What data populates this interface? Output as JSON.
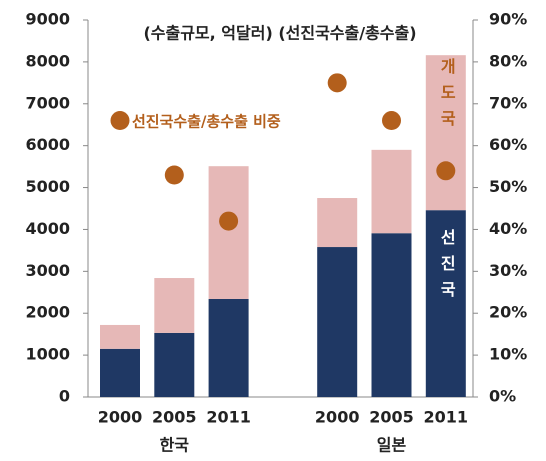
{
  "chart_data": {
    "type": "bar",
    "title": "(수출규모, 억달러) (선진국수출/총수출)",
    "categories": [
      "2000",
      "2005",
      "2011",
      "2000",
      "2005",
      "2011"
    ],
    "groups": [
      "한국",
      "일본"
    ],
    "stacked": true,
    "series": [
      {
        "name": "선진국",
        "color": "#1f3864",
        "values": [
          1150,
          1530,
          2340,
          3580,
          3910,
          4460
        ]
      },
      {
        "name": "개도국",
        "color": "#e6b8b7",
        "values": [
          570,
          1310,
          3170,
          1170,
          1990,
          3700
        ]
      },
      {
        "name": "선진국수출/총수출 비중",
        "type": "scatter",
        "axis": "y2",
        "color": "#b35f1c",
        "values": [
          66,
          53,
          42,
          75,
          66,
          54
        ]
      }
    ],
    "ylim": [
      0,
      9000
    ],
    "yticks": [
      0,
      1000,
      2000,
      3000,
      4000,
      5000,
      6000,
      7000,
      8000,
      9000
    ],
    "y2lim": [
      0,
      90
    ],
    "y2ticks": [
      {
        "value": 0,
        "label": "0%"
      },
      {
        "value": 10,
        "label": "10%"
      },
      {
        "value": 20,
        "label": "20%"
      },
      {
        "value": 30,
        "label": "30%"
      },
      {
        "value": 40,
        "label": "40%"
      },
      {
        "value": 50,
        "label": "50%"
      },
      {
        "value": 60,
        "label": "60%"
      },
      {
        "value": 70,
        "label": "70%"
      },
      {
        "value": 80,
        "label": "80%"
      },
      {
        "value": 90,
        "label": "90%"
      }
    ],
    "grid": false
  }
}
